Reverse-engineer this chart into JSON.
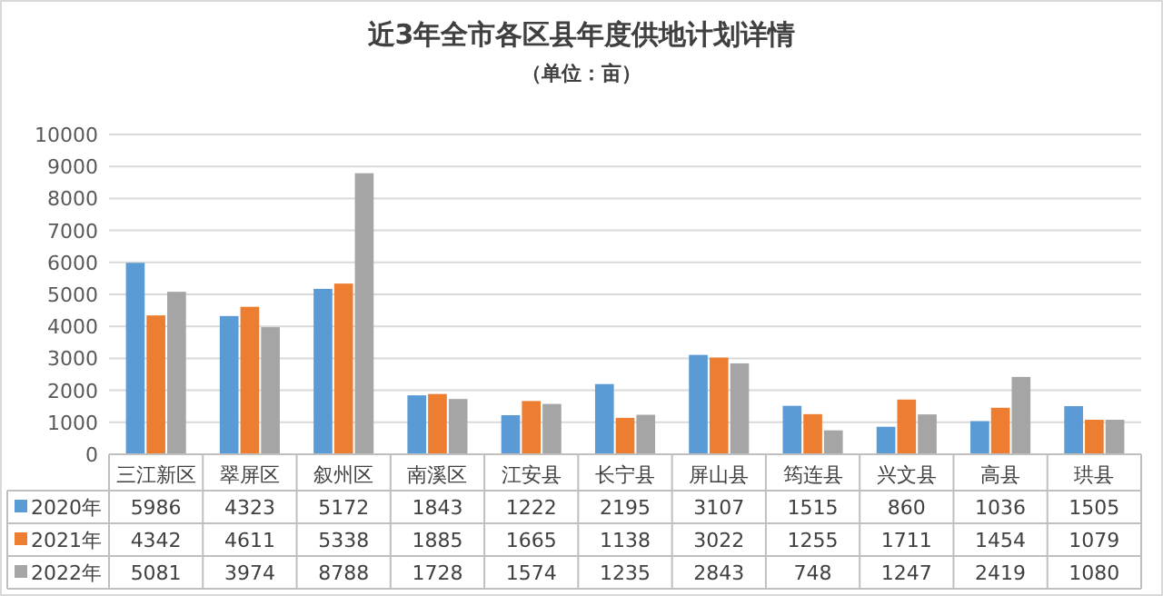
{
  "chart_data": {
    "type": "bar",
    "title": "近3年全市各区县年度供地计划详情",
    "subtitle": "（单位：亩）",
    "categories": [
      "三江新区",
      "翠屏区",
      "叙州区",
      "南溪区",
      "江安县",
      "长宁县",
      "屏山县",
      "筠连县",
      "兴文县",
      "高县",
      "珙县"
    ],
    "series": [
      {
        "name": "2020年",
        "color": "#5b9bd5",
        "values": [
          5986,
          4323,
          5172,
          1843,
          1222,
          2195,
          3107,
          1515,
          860,
          1036,
          1505
        ]
      },
      {
        "name": "2021年",
        "color": "#ed7d31",
        "values": [
          4342,
          4611,
          5338,
          1885,
          1665,
          1138,
          3022,
          1255,
          1711,
          1454,
          1079
        ]
      },
      {
        "name": "2022年",
        "color": "#a5a5a5",
        "values": [
          5081,
          3974,
          8788,
          1728,
          1574,
          1235,
          2843,
          748,
          1247,
          2419,
          1080
        ]
      }
    ],
    "ylim": [
      0,
      10000
    ],
    "yticks": [
      0,
      1000,
      2000,
      3000,
      4000,
      5000,
      6000,
      7000,
      8000,
      9000,
      10000
    ],
    "grid": "y",
    "legend": "bottom",
    "data_labels": true
  }
}
